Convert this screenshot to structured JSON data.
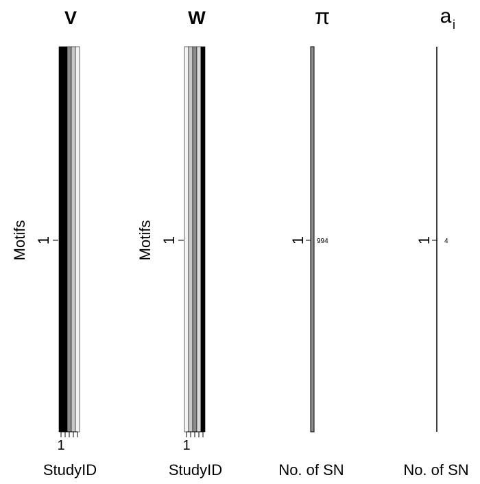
{
  "chart_data": [
    {
      "type": "heatmap",
      "title": "V",
      "ylabel": "Motifs",
      "xlabel": "StudyID",
      "rows": [
        "1"
      ],
      "x_tick_labels": [
        "1"
      ],
      "columns": 5,
      "cells": [
        [
          "#000000",
          "#000000",
          "#8c8c8c",
          "#c8c8c8",
          "#f2f2f2"
        ]
      ]
    },
    {
      "type": "heatmap",
      "title": "W",
      "ylabel": "Motifs",
      "xlabel": "StudyID",
      "rows": [
        "1"
      ],
      "x_tick_labels": [
        "1"
      ],
      "columns": 5,
      "cells": [
        [
          "#f2f2f2",
          "#c8c8c8",
          "#8c8c8c",
          "#d9d9d9",
          "#000000"
        ]
      ]
    },
    {
      "type": "bar",
      "title": "π",
      "xlabel": "No. of SN",
      "categories": [
        "1"
      ],
      "values": [
        994
      ],
      "value_labels": [
        "994"
      ],
      "bar_color": "#8c8c8c"
    },
    {
      "type": "bar",
      "title": "a",
      "title_subscript": "i",
      "xlabel": "No. of SN",
      "categories": [
        "1"
      ],
      "values": [
        4
      ],
      "value_labels": [
        "4"
      ],
      "bar_color": "#000000"
    }
  ]
}
